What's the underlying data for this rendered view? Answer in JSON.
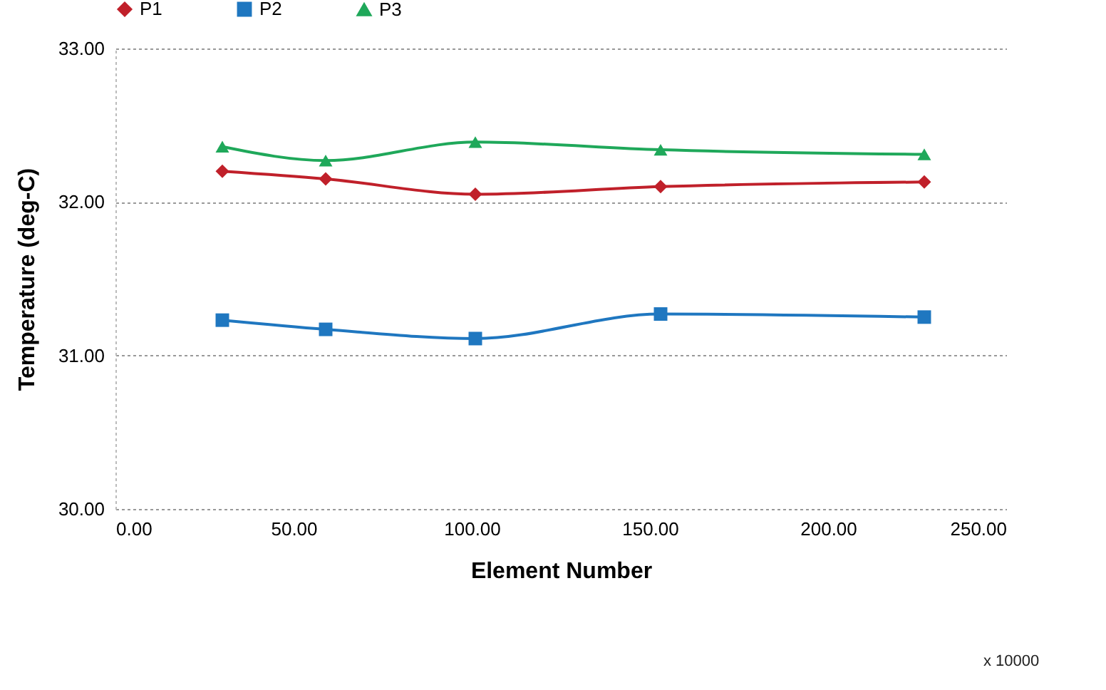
{
  "chart_data": {
    "type": "line",
    "xlabel": "Element Number",
    "ylabel": "Temperature (deg-C)",
    "annotations": [
      "x 10000"
    ],
    "xlim": [
      0,
      250
    ],
    "xticks": [
      {
        "value": 0,
        "label": "0.00"
      },
      {
        "value": 50,
        "label": "50.00"
      },
      {
        "value": 100,
        "label": "100.00"
      },
      {
        "value": 150,
        "label": "150.00"
      },
      {
        "value": 200,
        "label": "200.00"
      },
      {
        "value": 250,
        "label": "250.00"
      }
    ],
    "ylim": [
      30,
      33
    ],
    "yticks": [
      {
        "value": 30,
        "label": "30.00"
      },
      {
        "value": 31,
        "label": "31.00"
      },
      {
        "value": 32,
        "label": "32.00"
      },
      {
        "value": 33,
        "label": "33.00"
      }
    ],
    "x": [
      30,
      59,
      101,
      153,
      227
    ],
    "grid": "y",
    "legend": "top",
    "series": [
      {
        "name": "P1",
        "color": "#c0202a",
        "marker": "diamond",
        "values": [
          32.2,
          32.15,
          32.05,
          32.1,
          32.13
        ]
      },
      {
        "name": "P2",
        "color": "#1f77c0",
        "marker": "square",
        "values": [
          31.23,
          31.17,
          31.11,
          31.27,
          31.25
        ]
      },
      {
        "name": "P3",
        "color": "#1fa85a",
        "marker": "triangle",
        "values": [
          32.36,
          32.27,
          32.39,
          32.34,
          32.31
        ]
      }
    ]
  }
}
